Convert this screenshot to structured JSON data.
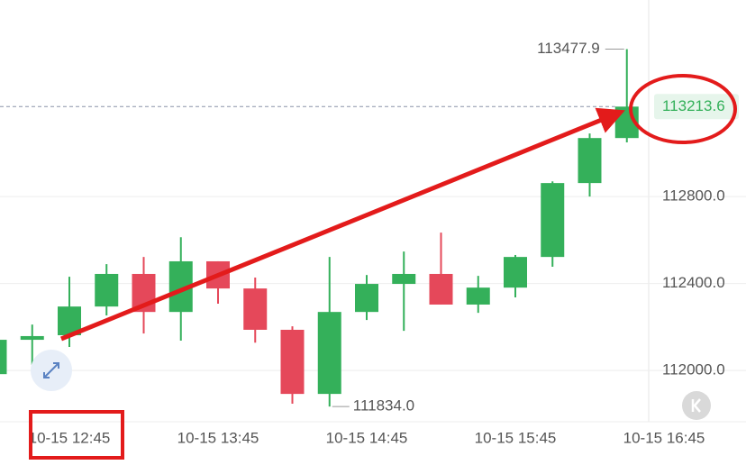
{
  "chart_data": {
    "type": "candlestick",
    "categories": [
      null,
      null,
      "10-15 12:45",
      null,
      null,
      null,
      "10-15 13:45",
      null,
      null,
      null,
      "10-15 14:45",
      null,
      null,
      null,
      "10-15 15:45",
      null,
      null,
      null,
      "10-15 16:45"
    ],
    "open": [
      111983,
      112141,
      112162,
      112294,
      112444,
      112269,
      112502,
      112377,
      112187,
      111892,
      112269,
      112398,
      112444,
      112303,
      112381,
      112522,
      112862,
      113069,
      null
    ],
    "high": [
      112141,
      112211,
      112431,
      112489,
      112522,
      112613,
      112502,
      112427,
      112203,
      112522,
      112439,
      112547,
      112634,
      112435,
      112531,
      112870,
      113090,
      113477.9,
      null
    ],
    "low": [
      111983,
      112025,
      112108,
      112253,
      112170,
      112137,
      112307,
      112128,
      111847,
      111834,
      112232,
      112182,
      112303,
      112265,
      112336,
      112477,
      112800,
      113049,
      null
    ],
    "close": [
      112141,
      112158,
      112294,
      112444,
      112269,
      112502,
      112377,
      112187,
      111892,
      112269,
      112398,
      112444,
      112303,
      112381,
      112522,
      112862,
      113069,
      113213.6,
      null
    ],
    "up_color": "#34b05a",
    "down_color": "#e5485a",
    "ylim": [
      111764,
      113704
    ],
    "yticks": [
      {
        "value": 112000,
        "label": "112000.0"
      },
      {
        "value": 112400,
        "label": "112400.0"
      },
      {
        "value": 112800,
        "label": "112800.0"
      }
    ],
    "grid": true,
    "annotations": {
      "high": "113477.9",
      "low": "111834.0",
      "last_price": "113213.6"
    }
  }
}
